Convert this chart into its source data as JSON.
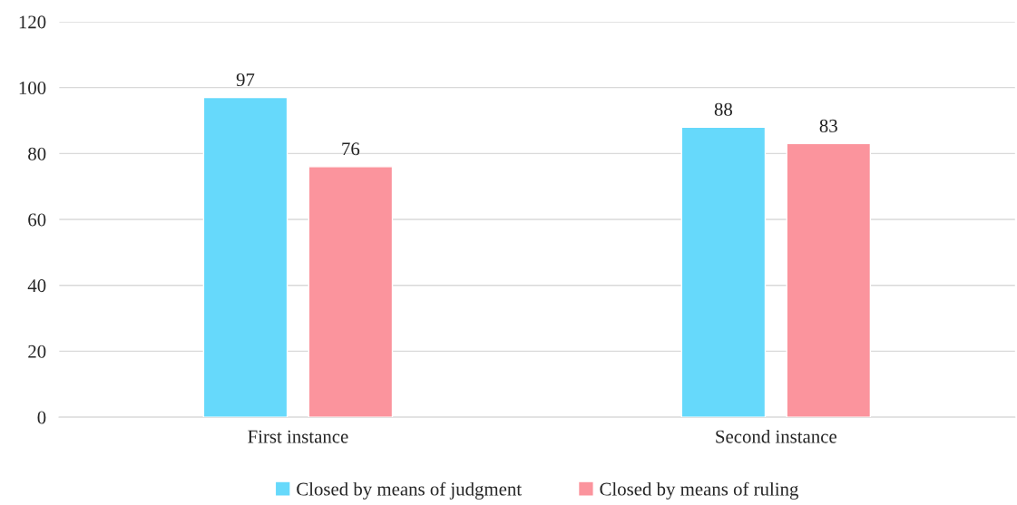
{
  "chart_data": {
    "type": "bar",
    "categories": [
      "First instance",
      "Second instance"
    ],
    "series": [
      {
        "name": "Closed by means of judgment",
        "color": "#66d9fb",
        "values": [
          97,
          88
        ]
      },
      {
        "name": "Closed by means of ruling",
        "color": "#fb949d",
        "values": [
          76,
          83
        ]
      }
    ],
    "ylim": [
      0,
      120
    ],
    "yticks": [
      0,
      20,
      40,
      60,
      80,
      100,
      120
    ],
    "grid": "y",
    "legend": "bottom",
    "data_labels": true
  }
}
